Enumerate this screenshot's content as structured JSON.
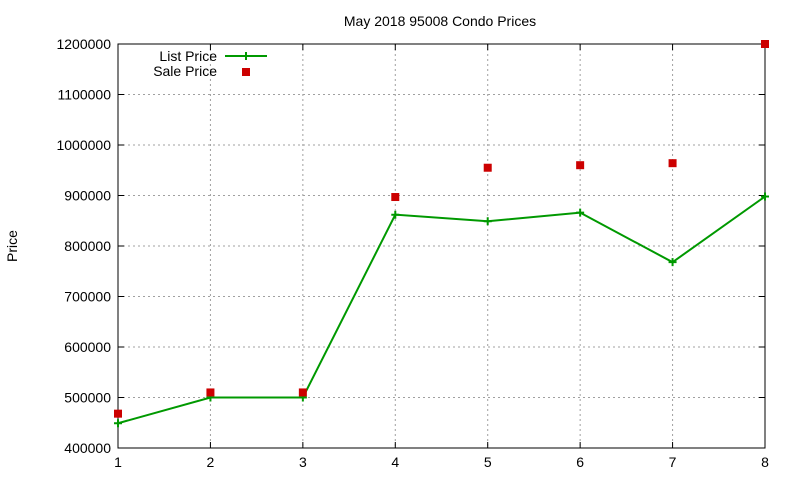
{
  "chart_data": {
    "type": "line",
    "title": "May 2018 95008 Condo Prices",
    "xlabel": "",
    "ylabel": "Price",
    "x": [
      1,
      2,
      3,
      4,
      5,
      6,
      7,
      8
    ],
    "xlim": [
      1,
      8
    ],
    "ylim": [
      400000,
      1200000
    ],
    "x_ticks": [
      1,
      2,
      3,
      4,
      5,
      6,
      7,
      8
    ],
    "y_ticks": [
      400000,
      500000,
      600000,
      700000,
      800000,
      900000,
      1000000,
      1100000,
      1200000
    ],
    "grid": true,
    "legend_position": "top-left",
    "series": [
      {
        "name": "List Price",
        "style": "linespoints",
        "marker": "plus",
        "color": "#009900",
        "values": [
          449000,
          500000,
          500000,
          862000,
          849000,
          866000,
          768000,
          898000
        ]
      },
      {
        "name": "Sale Price",
        "style": "points",
        "marker": "square",
        "color": "#cc0000",
        "values": [
          468000,
          510000,
          510000,
          897000,
          955000,
          960000,
          964000,
          1200000
        ]
      }
    ]
  }
}
